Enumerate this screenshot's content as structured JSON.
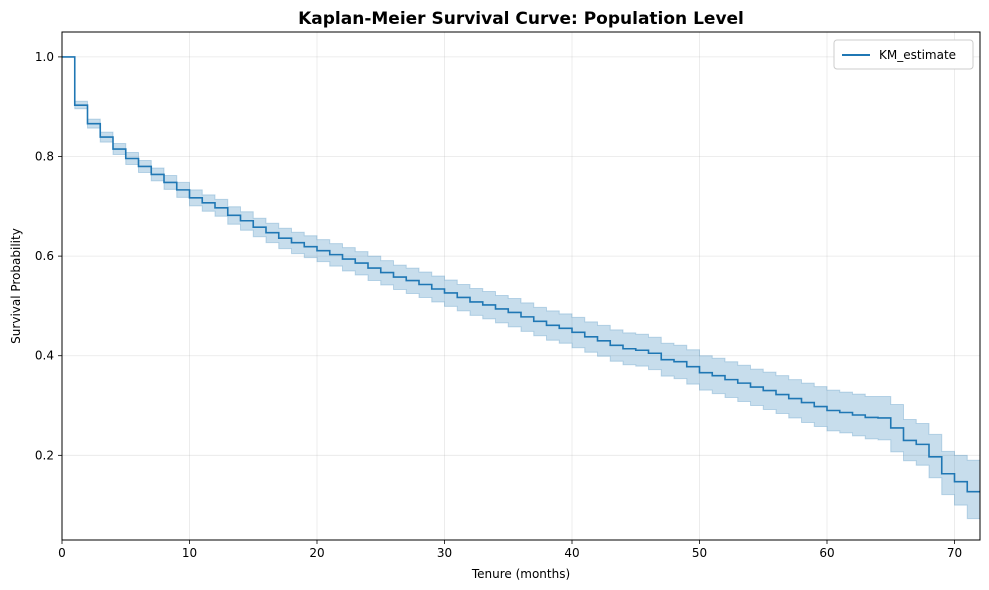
{
  "chart_data": {
    "type": "line",
    "title": "Kaplan-Meier Survival Curve: Population Level",
    "xlabel": "Tenure (months)",
    "ylabel": "Survival Probability",
    "xlim": [
      0,
      72
    ],
    "ylim": [
      0.03,
      1.05
    ],
    "xticks": [
      0,
      10,
      20,
      30,
      40,
      50,
      60,
      70
    ],
    "yticks": [
      0.2,
      0.4,
      0.6,
      0.8,
      1.0
    ],
    "xtick_labels": [
      "0",
      "10",
      "20",
      "30",
      "40",
      "50",
      "60",
      "70"
    ],
    "ytick_labels": [
      "0.2",
      "0.4",
      "0.6",
      "0.8",
      "1.0"
    ],
    "grid": true,
    "legend_position": "top-right",
    "color": "#1f77b4",
    "band_color": "#1f77b4",
    "series": [
      {
        "name": "KM_estimate",
        "step": "post",
        "x": [
          0,
          1,
          2,
          3,
          4,
          5,
          6,
          7,
          8,
          9,
          10,
          11,
          12,
          13,
          14,
          15,
          16,
          17,
          18,
          19,
          20,
          21,
          22,
          23,
          24,
          25,
          26,
          27,
          28,
          29,
          30,
          31,
          32,
          33,
          34,
          35,
          36,
          37,
          38,
          39,
          40,
          41,
          42,
          43,
          44,
          45,
          46,
          47,
          48,
          49,
          50,
          51,
          52,
          53,
          54,
          55,
          56,
          57,
          58,
          59,
          60,
          61,
          62,
          63,
          64,
          65,
          66,
          67,
          68,
          69,
          70,
          71,
          72
        ],
        "y": [
          1.0,
          0.903,
          0.866,
          0.839,
          0.815,
          0.796,
          0.78,
          0.764,
          0.748,
          0.733,
          0.717,
          0.707,
          0.697,
          0.682,
          0.671,
          0.658,
          0.647,
          0.636,
          0.627,
          0.619,
          0.611,
          0.603,
          0.594,
          0.586,
          0.576,
          0.567,
          0.558,
          0.551,
          0.543,
          0.534,
          0.526,
          0.517,
          0.508,
          0.502,
          0.494,
          0.487,
          0.478,
          0.469,
          0.461,
          0.455,
          0.447,
          0.438,
          0.43,
          0.421,
          0.414,
          0.411,
          0.405,
          0.392,
          0.388,
          0.378,
          0.366,
          0.36,
          0.352,
          0.345,
          0.337,
          0.33,
          0.322,
          0.314,
          0.306,
          0.298,
          0.29,
          0.286,
          0.281,
          0.276,
          0.275,
          0.255,
          0.23,
          0.222,
          0.197,
          0.163,
          0.147,
          0.127,
          0.127
        ],
        "ci_lower": [
          1.0,
          0.896,
          0.857,
          0.829,
          0.804,
          0.784,
          0.768,
          0.751,
          0.734,
          0.718,
          0.701,
          0.69,
          0.68,
          0.664,
          0.652,
          0.639,
          0.627,
          0.615,
          0.605,
          0.597,
          0.589,
          0.58,
          0.57,
          0.562,
          0.551,
          0.542,
          0.533,
          0.525,
          0.517,
          0.508,
          0.499,
          0.49,
          0.481,
          0.474,
          0.466,
          0.458,
          0.449,
          0.44,
          0.431,
          0.425,
          0.416,
          0.407,
          0.399,
          0.389,
          0.382,
          0.379,
          0.372,
          0.359,
          0.354,
          0.343,
          0.331,
          0.324,
          0.316,
          0.308,
          0.3,
          0.292,
          0.284,
          0.275,
          0.266,
          0.258,
          0.249,
          0.245,
          0.239,
          0.233,
          0.231,
          0.207,
          0.189,
          0.18,
          0.155,
          0.121,
          0.1,
          0.073,
          0.073
        ],
        "ci_upper": [
          1.0,
          0.911,
          0.875,
          0.849,
          0.826,
          0.808,
          0.792,
          0.777,
          0.762,
          0.748,
          0.733,
          0.723,
          0.714,
          0.699,
          0.689,
          0.676,
          0.666,
          0.656,
          0.648,
          0.641,
          0.633,
          0.625,
          0.617,
          0.609,
          0.6,
          0.591,
          0.582,
          0.576,
          0.568,
          0.56,
          0.552,
          0.543,
          0.535,
          0.529,
          0.521,
          0.515,
          0.506,
          0.497,
          0.49,
          0.484,
          0.477,
          0.468,
          0.461,
          0.452,
          0.446,
          0.443,
          0.437,
          0.425,
          0.421,
          0.412,
          0.4,
          0.395,
          0.388,
          0.381,
          0.373,
          0.367,
          0.36,
          0.352,
          0.345,
          0.338,
          0.331,
          0.327,
          0.323,
          0.318,
          0.318,
          0.302,
          0.272,
          0.264,
          0.242,
          0.208,
          0.2,
          0.19,
          0.19
        ]
      }
    ]
  }
}
